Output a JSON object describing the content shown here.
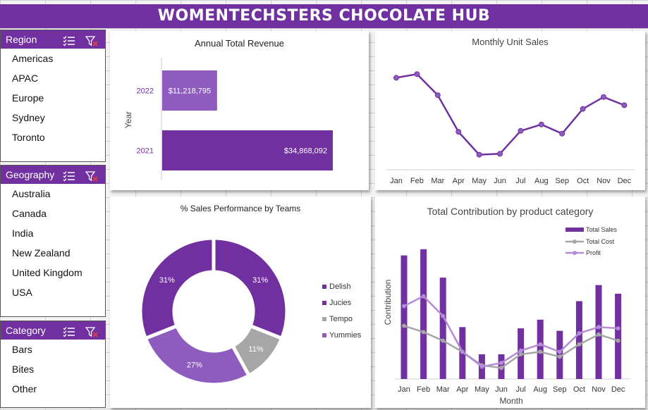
{
  "banner": {
    "title": "WOMENTECHSTERS CHOCOLATE HUB"
  },
  "colors": {
    "accent": "#7030a0",
    "light_purple": "#8e5bbf",
    "gray": "#a6a6a6",
    "profit": "#b58ad6"
  },
  "slicers": {
    "region": {
      "title": "Region",
      "items": [
        "Americas",
        "APAC",
        "Europe",
        "Sydney",
        "Toronto"
      ]
    },
    "geography": {
      "title": "Geography",
      "items": [
        "Australia",
        "Canada",
        "India",
        "New Zealand",
        "United Kingdom",
        "USA"
      ]
    },
    "category": {
      "title": "Category",
      "items": [
        "Bars",
        "Bites",
        "Other"
      ]
    }
  },
  "revenue_chart": {
    "title": "Annual Total Revenue",
    "ylabel": "Year"
  },
  "units_chart": {
    "title": "Monthly Unit Sales"
  },
  "teams_chart": {
    "title": "% Sales Performance by Teams"
  },
  "contribution_chart": {
    "title": "Total Contribution by product category",
    "ylabel": "Contribution",
    "xlabel": "Month"
  },
  "chart_data": [
    {
      "type": "bar",
      "orientation": "horizontal",
      "title": "Annual Total Revenue",
      "ylabel": "Year",
      "categories": [
        "2022",
        "2021"
      ],
      "values": [
        11218795,
        34868092
      ],
      "labels": [
        "$11,218,795",
        "$34,868,092"
      ]
    },
    {
      "type": "line",
      "title": "Monthly Unit Sales",
      "categories": [
        "Jan",
        "Feb",
        "Mar",
        "Apr",
        "May",
        "Jun",
        "Jul",
        "Aug",
        "Sep",
        "Oct",
        "Nov",
        "Dec"
      ],
      "values": [
        92,
        96,
        73,
        33,
        8,
        9,
        34,
        41,
        31,
        58,
        71,
        62
      ],
      "grid": false
    },
    {
      "type": "pie",
      "donut": true,
      "title": "% Sales Performance by Teams",
      "categories": [
        "Delish",
        "Jucies",
        "Tempo",
        "Yummies"
      ],
      "values": [
        31,
        31,
        11,
        27
      ],
      "labels": [
        "31%",
        "31%",
        "11%",
        "27%"
      ],
      "legend": "right"
    },
    {
      "type": "bar",
      "title": "Total Contribution by product category",
      "xlabel": "Month",
      "ylabel": "Contribution",
      "categories": [
        "Jan",
        "Feb",
        "Mar",
        "Apr",
        "May",
        "Jun",
        "Jul",
        "Aug",
        "Sep",
        "Oct",
        "Nov",
        "Dec"
      ],
      "legend": "top-right",
      "series": [
        {
          "name": "Total Sales",
          "type": "bar",
          "values": [
            100,
            105,
            82,
            42,
            20,
            20,
            41,
            48,
            39,
            63,
            76,
            69
          ]
        },
        {
          "name": "Total Cost",
          "type": "line",
          "values": [
            43,
            38,
            31,
            22,
            11,
            9,
            20,
            22,
            18,
            28,
            36,
            31
          ]
        },
        {
          "name": "Profit",
          "type": "line",
          "values": [
            59,
            67,
            51,
            22,
            10,
            13,
            23,
            28,
            22,
            37,
            42,
            41
          ]
        }
      ]
    }
  ]
}
